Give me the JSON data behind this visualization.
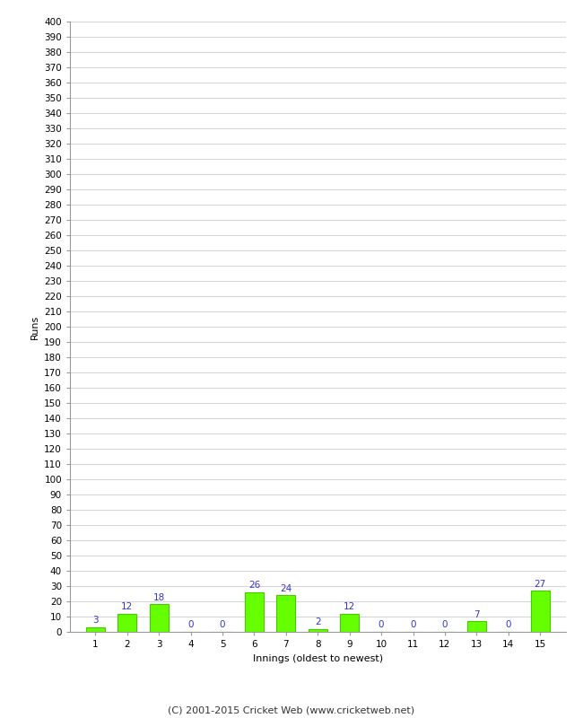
{
  "innings": [
    1,
    2,
    3,
    4,
    5,
    6,
    7,
    8,
    9,
    10,
    11,
    12,
    13,
    14,
    15
  ],
  "values": [
    3,
    12,
    18,
    0,
    0,
    26,
    24,
    2,
    12,
    0,
    0,
    0,
    7,
    0,
    27
  ],
  "bar_color": "#66ff00",
  "bar_edge_color": "#44cc00",
  "xlabel": "Innings (oldest to newest)",
  "ylabel": "Runs",
  "ylim": [
    0,
    400
  ],
  "ytick_step": 10,
  "label_color": "#3333cc",
  "label_fontsize": 7.5,
  "axis_label_fontsize": 8,
  "tick_fontsize": 7.5,
  "background_color": "#ffffff",
  "grid_color": "#cccccc",
  "footer": "(C) 2001-2015 Cricket Web (www.cricketweb.net)",
  "footer_fontsize": 8
}
